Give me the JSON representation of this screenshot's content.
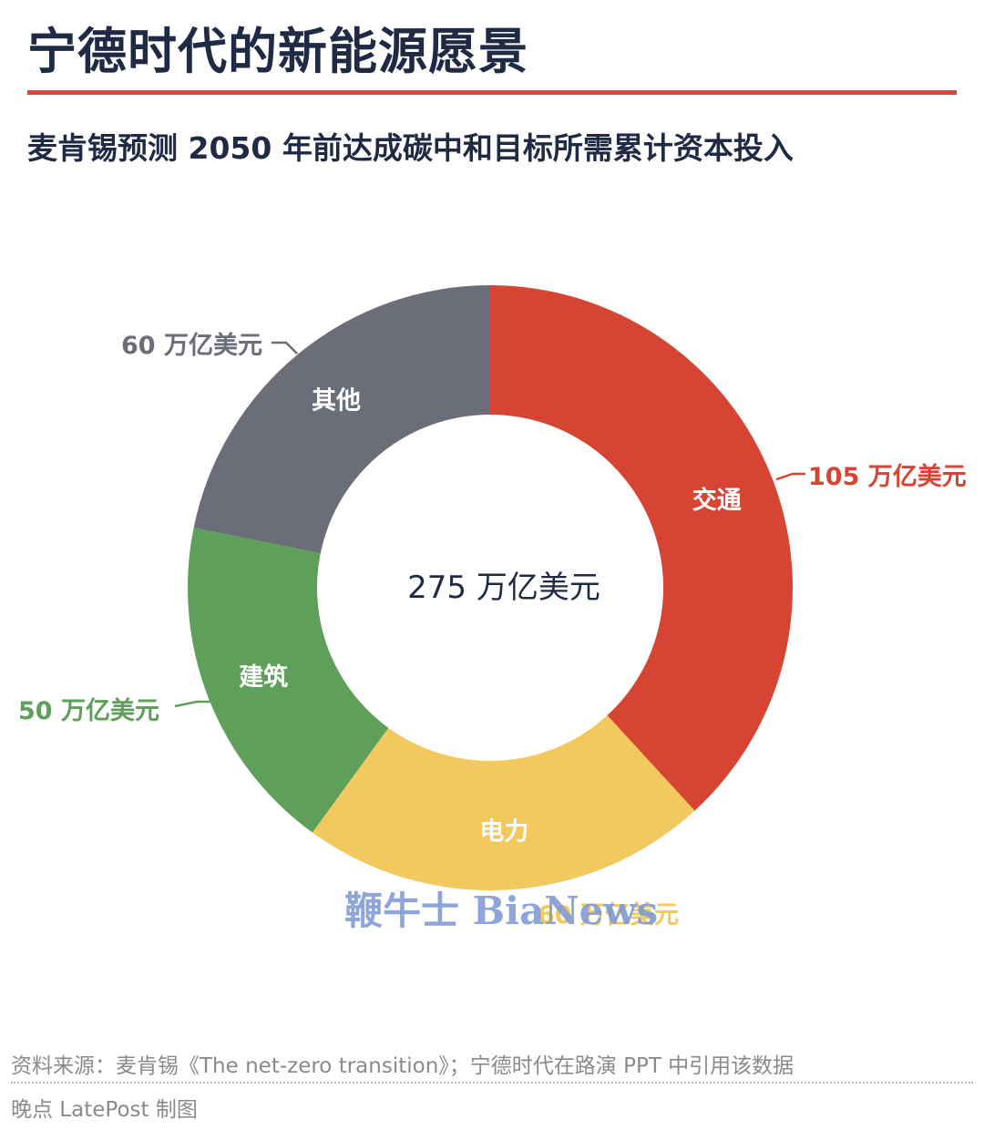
{
  "title": "宁德时代的新能源愿景",
  "subtitle": "麦肯锡预测 2050 年前达成碳中和目标所需累计资本投入",
  "chart_data": {
    "type": "pie",
    "donut": true,
    "center_label": "275 万亿美元",
    "total": 275,
    "unit": "万亿美元",
    "slices": [
      {
        "name": "交通",
        "value": 105,
        "value_label": "105 万亿美元",
        "color": "#d64533"
      },
      {
        "name": "电力",
        "value": 60,
        "value_label": "60 万亿美元",
        "color": "#f1c95f"
      },
      {
        "name": "建筑",
        "value": 50,
        "value_label": "50 万亿美元",
        "color": "#5ea05a"
      },
      {
        "name": "其他",
        "value": 60,
        "value_label": "60 万亿美元",
        "color": "#6b6e79"
      }
    ]
  },
  "watermark": "鞭牛士 BiaNews",
  "source": "资料来源：麦肯锡《The net-zero transition》；宁德时代在路演 PPT 中引用该数据",
  "credit": "晚点 LatePost 制图",
  "colors": {
    "accent": "#d4453a",
    "text": "#1f2a44",
    "muted": "#8a8a8a"
  }
}
